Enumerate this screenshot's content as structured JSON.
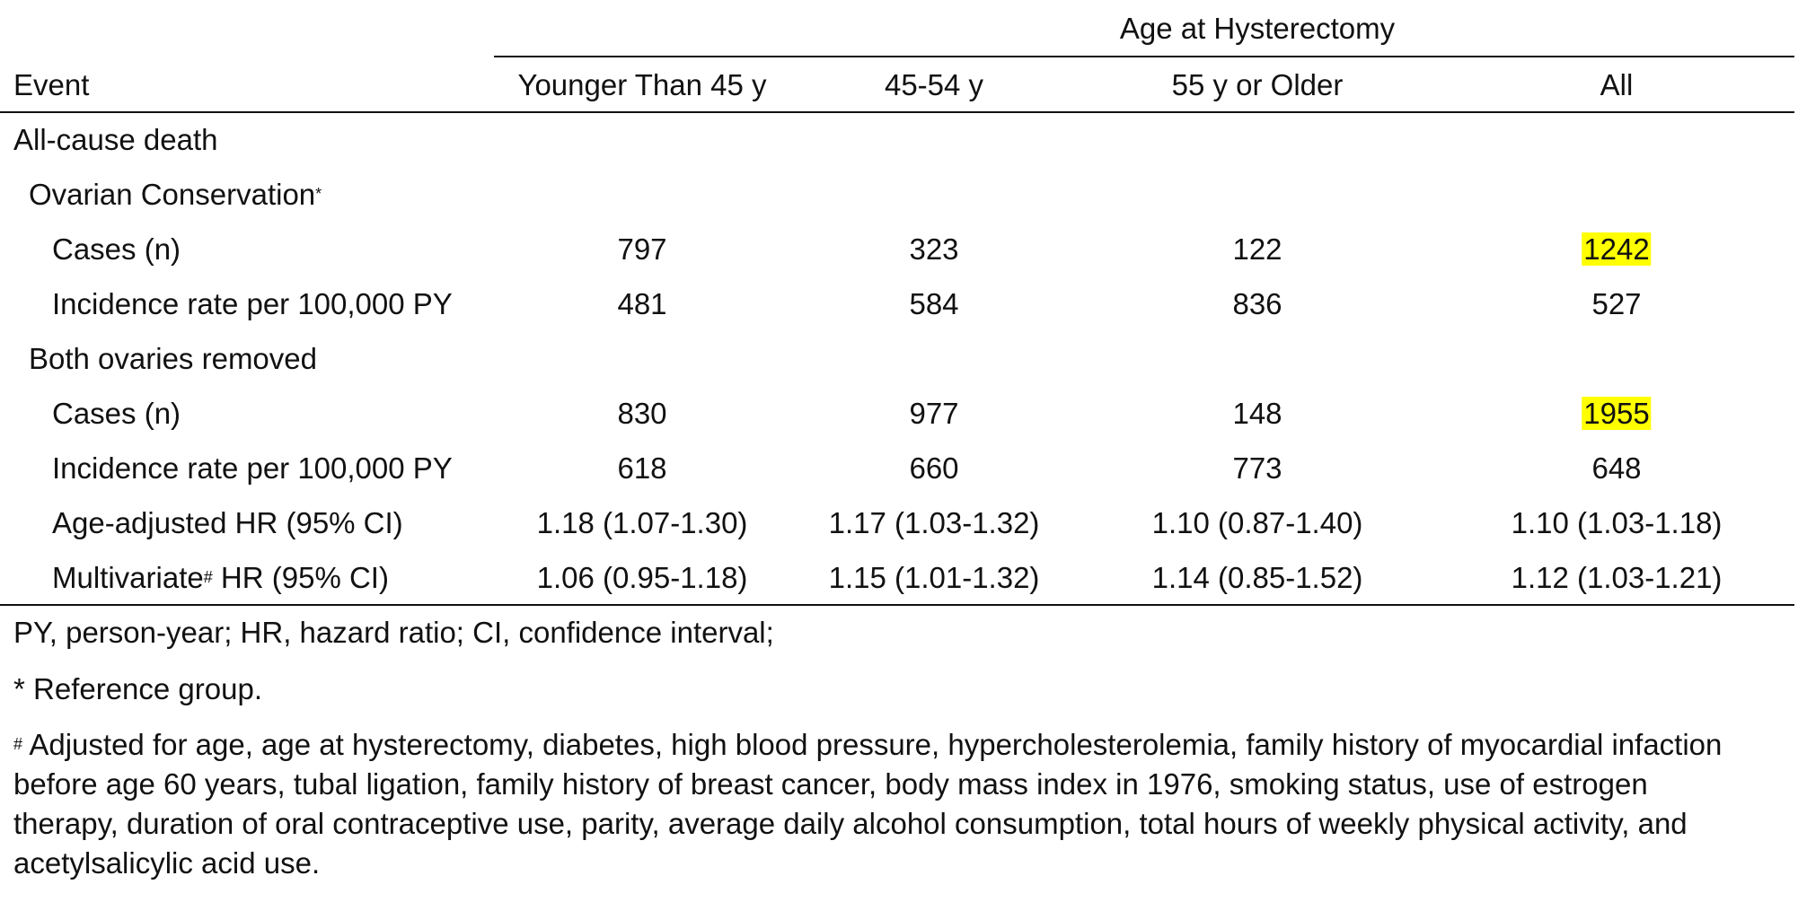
{
  "table": {
    "group_header": "Age at Hysterectomy",
    "columns": [
      "Event",
      "Younger Than 45 y",
      "45-54 y",
      "55 y or Older",
      "All"
    ],
    "section": "All-cause death",
    "groups": [
      {
        "label": "Ovarian Conservation",
        "label_marker": "*",
        "rows": [
          {
            "label": "Cases (n)",
            "marker": "",
            "values": [
              "797",
              "323",
              "122",
              "1242"
            ],
            "highlight_last": true
          },
          {
            "label": "Incidence rate per 100,000 PY",
            "marker": "",
            "values": [
              "481",
              "584",
              "836",
              "527"
            ],
            "highlight_last": false
          }
        ]
      },
      {
        "label": "Both ovaries removed",
        "label_marker": "",
        "rows": [
          {
            "label": "Cases (n)",
            "marker": "",
            "values": [
              "830",
              "977",
              "148",
              "1955"
            ],
            "highlight_last": true
          },
          {
            "label": "Incidence rate per 100,000 PY",
            "marker": "",
            "values": [
              "618",
              "660",
              "773",
              "648"
            ],
            "highlight_last": false
          },
          {
            "label": "Age-adjusted HR (95% CI)",
            "marker": "",
            "values": [
              "1.18 (1.07-1.30)",
              "1.17 (1.03-1.32)",
              "1.10 (0.87-1.40)",
              "1.10 (1.03-1.18)"
            ],
            "highlight_last": false
          },
          {
            "label": "Multivariate",
            "marker": "#",
            "label_suffix": " HR (95% CI)",
            "values": [
              "1.06 (0.95-1.18)",
              "1.15 (1.01-1.32)",
              "1.14 (0.85-1.52)",
              "1.12 (1.03-1.21)"
            ],
            "highlight_last": false
          }
        ]
      }
    ]
  },
  "footnotes": {
    "abbreviations": "PY, person-year; HR, hazard ratio; CI, confidence interval;",
    "reference": "* Reference group.",
    "adjusted_marker": "#",
    "adjusted": " Adjusted for age, age at hysterectomy, diabetes, high blood pressure, hypercholesterolemia, family history of myocardial infaction before age 60 years, tubal ligation, family history of breast cancer, body mass index in 1976, smoking status, use of estrogen therapy, duration of oral contraceptive use, parity, average daily alcohol consumption, total hours of weekly physical activity, and acetylsalicylic acid use."
  },
  "colors": {
    "highlight": "#ffff00",
    "text": "#111111"
  }
}
